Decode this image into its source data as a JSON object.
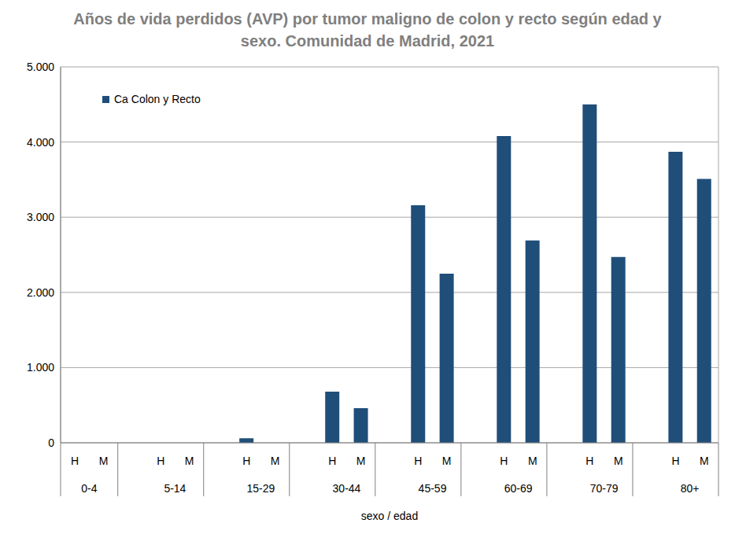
{
  "chart_data": {
    "type": "bar",
    "title": "Años de vida perdidos (AVP) por tumor maligno de colon y recto según edad y sexo. Comunidad de Madrid, 2021",
    "x_label": "sexo / edad",
    "categories": [
      "H",
      "M",
      null,
      "H",
      "M",
      null,
      "H",
      "M",
      null,
      "H",
      "M",
      null,
      "H",
      "M",
      null,
      "H",
      "M",
      null,
      "H",
      "M",
      null,
      "H",
      "M"
    ],
    "groups": [
      "0-4",
      "5-14",
      "15-29",
      "30-44",
      "45-59",
      "60-69",
      "70-79",
      "80+"
    ],
    "series": [
      {
        "name": "Ca Colon y Recto",
        "color": "#1f4e79",
        "values": [
          0,
          0,
          null,
          0,
          0,
          null,
          60,
          0,
          null,
          680,
          460,
          null,
          3160,
          2250,
          null,
          4080,
          2690,
          null,
          4500,
          2470,
          null,
          3870,
          3510
        ]
      }
    ],
    "ylim": [
      0,
      5000
    ],
    "yticks": [
      0,
      {
        "value": 1000,
        "label": "1.000"
      },
      {
        "value": 2000,
        "label": "2.000"
      },
      {
        "value": 3000,
        "label": "3.000"
      },
      {
        "value": 4000,
        "label": "4.000"
      },
      {
        "value": 5000,
        "label": "5.000"
      }
    ],
    "grid": true,
    "legend": "upper left"
  }
}
